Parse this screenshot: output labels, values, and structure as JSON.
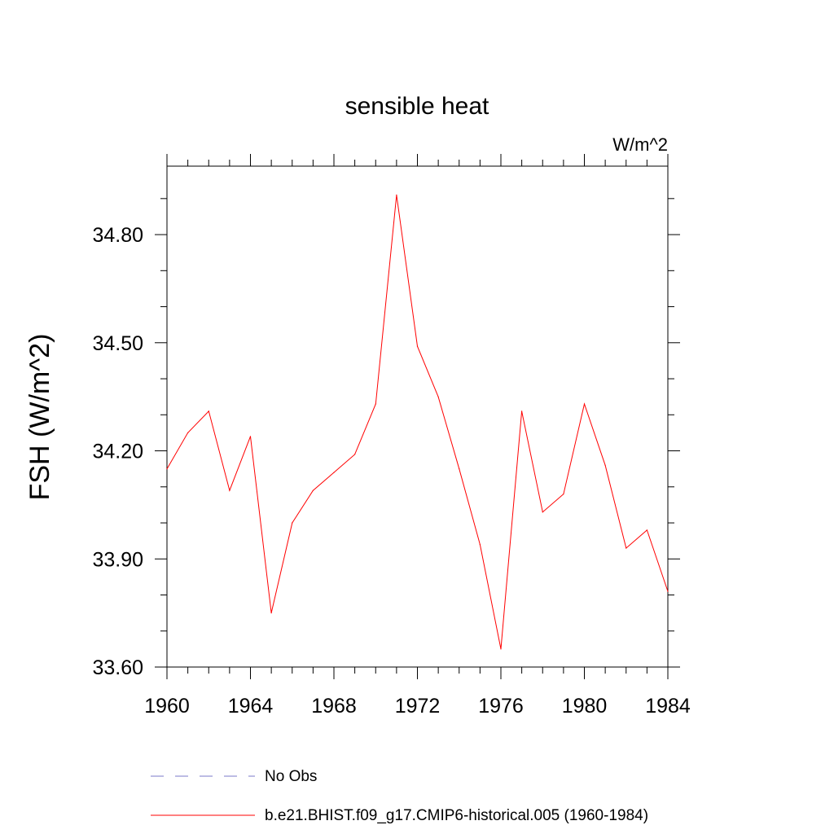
{
  "chart_data": {
    "type": "line",
    "title": "sensible heat",
    "units": "W/m^2",
    "ylabel": "FSH  (W/m^2)",
    "xlabel": "",
    "xlim": [
      1960,
      1984
    ],
    "ylim": [
      33.6,
      34.99
    ],
    "xticks": [
      1960,
      1964,
      1968,
      1972,
      1976,
      1980,
      1984
    ],
    "xtick_labels": [
      "1960",
      "1964",
      "1968",
      "1972",
      "1976",
      "1980",
      "1984"
    ],
    "yticks": [
      33.6,
      33.9,
      34.2,
      34.5,
      34.8
    ],
    "ytick_labels": [
      "33.60",
      "33.90",
      "34.20",
      "34.50",
      "34.80"
    ],
    "grid": false,
    "legend_position": "bottom",
    "series": [
      {
        "name": "b.e21.BHIST.f09_g17.CMIP6-historical.005 (1960-1984)",
        "color": "#ff0000",
        "x": [
          1960,
          1961,
          1962,
          1963,
          1964,
          1965,
          1966,
          1967,
          1968,
          1969,
          1970,
          1971,
          1972,
          1973,
          1974,
          1975,
          1976,
          1977,
          1978,
          1979,
          1980,
          1981,
          1982,
          1983,
          1984
        ],
        "y": [
          34.15,
          34.25,
          34.31,
          34.09,
          34.24,
          33.75,
          34.0,
          34.09,
          34.14,
          34.19,
          34.33,
          34.91,
          34.49,
          34.35,
          34.15,
          33.94,
          33.65,
          34.31,
          34.03,
          34.08,
          34.33,
          34.16,
          33.93,
          33.98,
          33.81
        ]
      }
    ],
    "legend": [
      {
        "label": "No Obs",
        "color": "#7b78c8",
        "style": "dashed"
      },
      {
        "label": "b.e21.BHIST.f09_g17.CMIP6-historical.005 (1960-1984)",
        "color": "#ff0000",
        "style": "solid"
      }
    ]
  }
}
